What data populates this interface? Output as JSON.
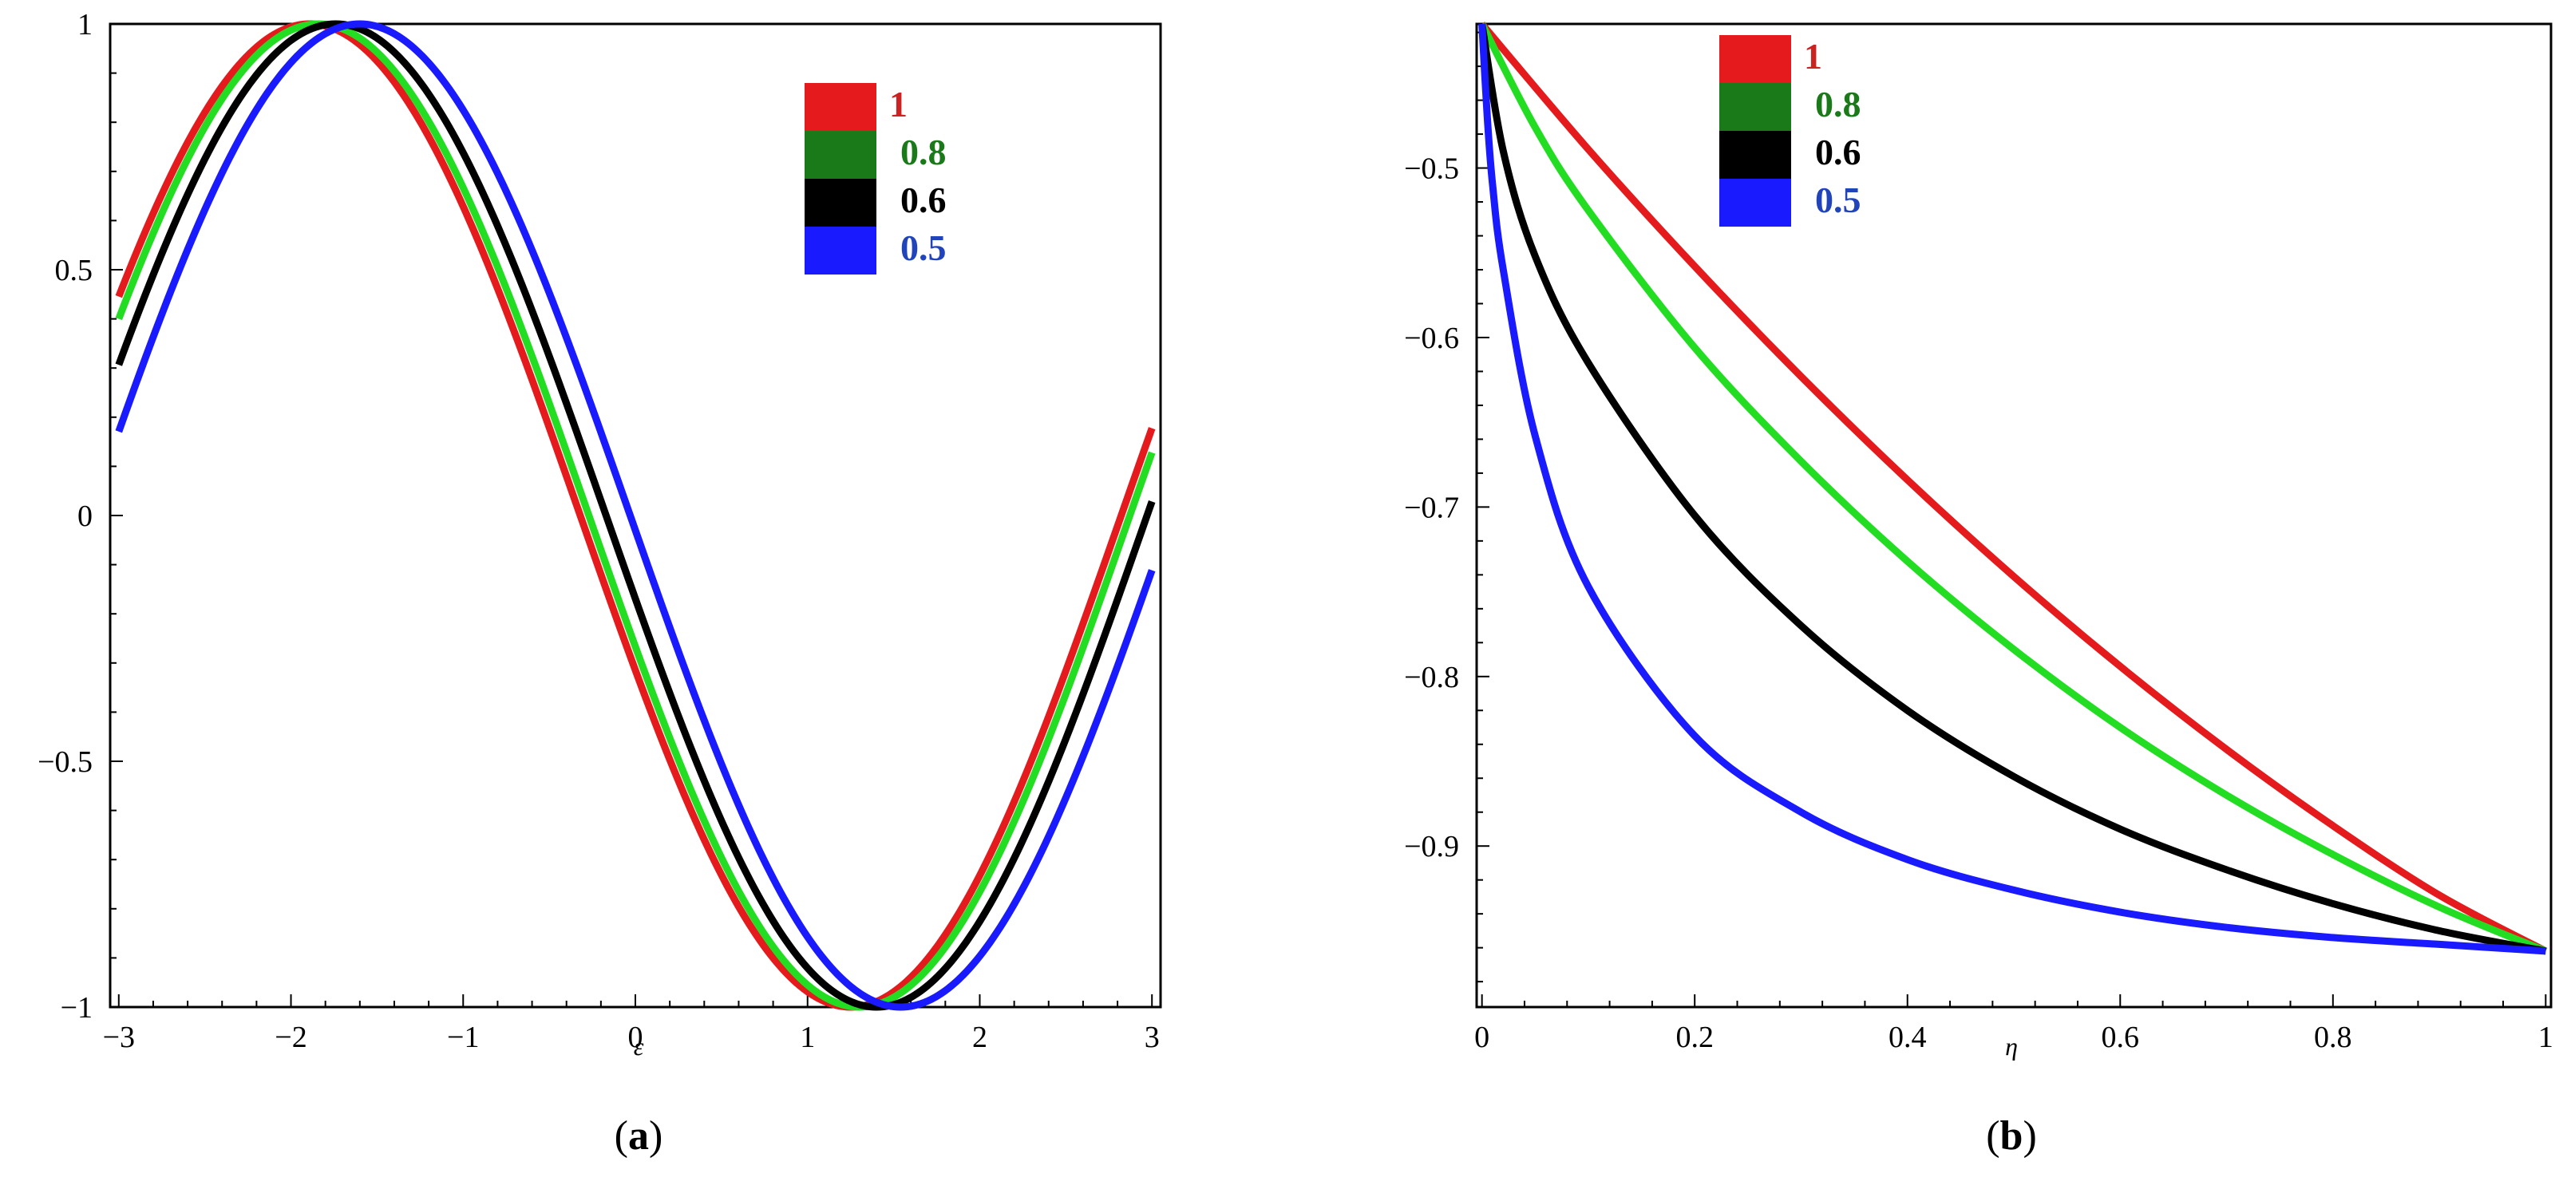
{
  "chart_data": [
    {
      "type": "line",
      "panel": "a",
      "caption": "a",
      "xlabel": "ε",
      "ylabel": "",
      "xlim": [
        -3.05,
        3.05
      ],
      "ylim": [
        -1.0,
        1.0
      ],
      "x_major_ticks": [
        -3,
        -2,
        -1,
        0,
        1,
        2,
        3
      ],
      "x_tick_labels": [
        "−3",
        "−2",
        "−1",
        "0",
        "1",
        "2",
        "3"
      ],
      "y_major_ticks": [
        -1,
        -0.5,
        0,
        0.5,
        1
      ],
      "y_tick_labels": [
        "−1",
        "−0.5",
        "0",
        "0.5",
        "1"
      ],
      "grid": false,
      "legend_position": "top-right",
      "series": [
        {
          "name": "1",
          "color": "#e41a1c",
          "legend_text_color": "#cc2222",
          "phase": 0.32
        },
        {
          "name": "0.8",
          "color": "#22dd22",
          "legend_swatch_color": "#1a7a1a",
          "legend_text_color": "#1a7a1a",
          "phase": 0.27
        },
        {
          "name": "0.6",
          "color": "#000000",
          "legend_text_color": "#000000",
          "phase": 0.17
        },
        {
          "name": "0.5",
          "color": "#1a1aff",
          "legend_text_color": "#2244bb",
          "phase": 0.03
        }
      ],
      "x_range": [
        -3.0,
        3.0
      ],
      "function": "y = -sin(x + phase)"
    },
    {
      "type": "line",
      "panel": "b",
      "caption": "b",
      "xlabel": "η",
      "ylabel": "",
      "xlim": [
        -0.005,
        1.005
      ],
      "ylim": [
        -0.995,
        -0.415
      ],
      "x_major_ticks": [
        0,
        0.2,
        0.4,
        0.6,
        0.8,
        1
      ],
      "x_tick_labels": [
        "0",
        "0.2",
        "0.4",
        "0.6",
        "0.8",
        "1"
      ],
      "y_major_ticks": [
        -0.5,
        -0.6,
        -0.7,
        -0.8,
        -0.9
      ],
      "y_tick_labels": [
        "−0.5",
        "−0.6",
        "−0.7",
        "−0.8",
        "−0.9"
      ],
      "grid": false,
      "legend_position": "top-left",
      "series": [
        {
          "name": "1",
          "color": "#e41a1c",
          "legend_text_color": "#cc2222",
          "x": [
            0,
            0.1,
            0.2,
            0.3,
            0.4,
            0.5,
            0.6,
            0.7,
            0.8,
            0.9,
            1.0
          ],
          "y": [
            -0.415,
            -0.489,
            -0.558,
            -0.623,
            -0.684,
            -0.741,
            -0.794,
            -0.843,
            -0.888,
            -0.929,
            -0.962
          ]
        },
        {
          "name": "0.8",
          "color": "#22dd22",
          "legend_swatch_color": "#1a7a1a",
          "legend_text_color": "#1a7a1a",
          "x": [
            0,
            0.05,
            0.1,
            0.2,
            0.3,
            0.4,
            0.5,
            0.6,
            0.7,
            0.8,
            0.9,
            1.0
          ],
          "y": [
            -0.415,
            -0.476,
            -0.525,
            -0.606,
            -0.673,
            -0.732,
            -0.784,
            -0.83,
            -0.87,
            -0.905,
            -0.936,
            -0.962
          ]
        },
        {
          "name": "0.6",
          "color": "#000000",
          "legend_text_color": "#000000",
          "x": [
            0,
            0.02,
            0.05,
            0.1,
            0.2,
            0.3,
            0.4,
            0.5,
            0.6,
            0.7,
            0.8,
            0.9,
            1.0
          ],
          "y": [
            -0.415,
            -0.49,
            -0.552,
            -0.615,
            -0.705,
            -0.77,
            -0.82,
            -0.859,
            -0.89,
            -0.914,
            -0.934,
            -0.95,
            -0.962
          ]
        },
        {
          "name": "0.5",
          "color": "#1a1aff",
          "legend_text_color": "#2244bb",
          "x": [
            0,
            0.005,
            0.01,
            0.02,
            0.05,
            0.1,
            0.2,
            0.3,
            0.4,
            0.5,
            0.6,
            0.7,
            0.8,
            0.9,
            1.0
          ],
          "y": [
            -0.415,
            -0.47,
            -0.51,
            -0.56,
            -0.658,
            -0.747,
            -0.835,
            -0.88,
            -0.908,
            -0.926,
            -0.939,
            -0.948,
            -0.954,
            -0.958,
            -0.962
          ]
        }
      ]
    }
  ]
}
